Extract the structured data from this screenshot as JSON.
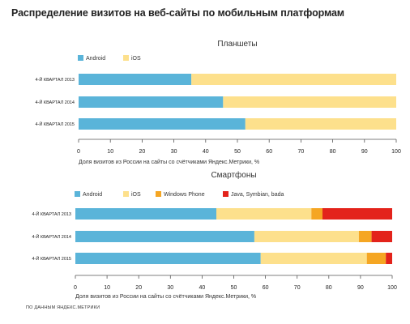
{
  "title": "Распределение визитов на веб-сайты по мобильным платформам",
  "source": "ПО ДАННЫМ ЯНДЕКС.МЕТРИКИ",
  "colors": {
    "Android": "#5ab4d9",
    "iOS": "#fde08c",
    "Windows Phone": "#f5a623",
    "Java, Symbian, bada": "#e3231b"
  },
  "chart_data": [
    {
      "type": "bar",
      "orientation": "horizontal",
      "stacked": true,
      "title": "Планшеты",
      "categories": [
        "4-Й КВАРТАЛ 2013",
        "4-Й КВАРТАЛ 2014",
        "4-Й КВАРТАЛ 2015"
      ],
      "series": [
        {
          "name": "Android",
          "values": [
            35.5,
            45.5,
            52.5
          ]
        },
        {
          "name": "iOS",
          "values": [
            64.5,
            54.5,
            47.5
          ]
        }
      ],
      "xlabel": "Доля визитов из России на сайты со счётчиками Яндекс.Метрики, %",
      "xlim": [
        0,
        100
      ],
      "xticks": [
        0,
        10,
        20,
        30,
        40,
        50,
        60,
        70,
        80,
        90,
        100
      ],
      "legend": "top-left",
      "grid": false
    },
    {
      "type": "bar",
      "orientation": "horizontal",
      "stacked": true,
      "title": "Смартфоны",
      "categories": [
        "4-Й КВАРТАЛ 2013",
        "4-Й КВАРТАЛ 2014",
        "4-Й КВАРТАЛ 2015"
      ],
      "series": [
        {
          "name": "Android",
          "values": [
            44.5,
            56.5,
            58.5
          ]
        },
        {
          "name": "iOS",
          "values": [
            30,
            33,
            33.5
          ]
        },
        {
          "name": "Windows Phone",
          "values": [
            3.5,
            4,
            6
          ]
        },
        {
          "name": "Java, Symbian, bada",
          "values": [
            22,
            6.5,
            2
          ]
        }
      ],
      "xlabel": "Доля визитов из России на сайты со счётчиками Яндекс.Метрики, %",
      "xlim": [
        0,
        100
      ],
      "xticks": [
        0,
        10,
        20,
        30,
        40,
        50,
        60,
        70,
        80,
        90,
        100
      ],
      "legend": "top-left",
      "grid": false
    }
  ]
}
